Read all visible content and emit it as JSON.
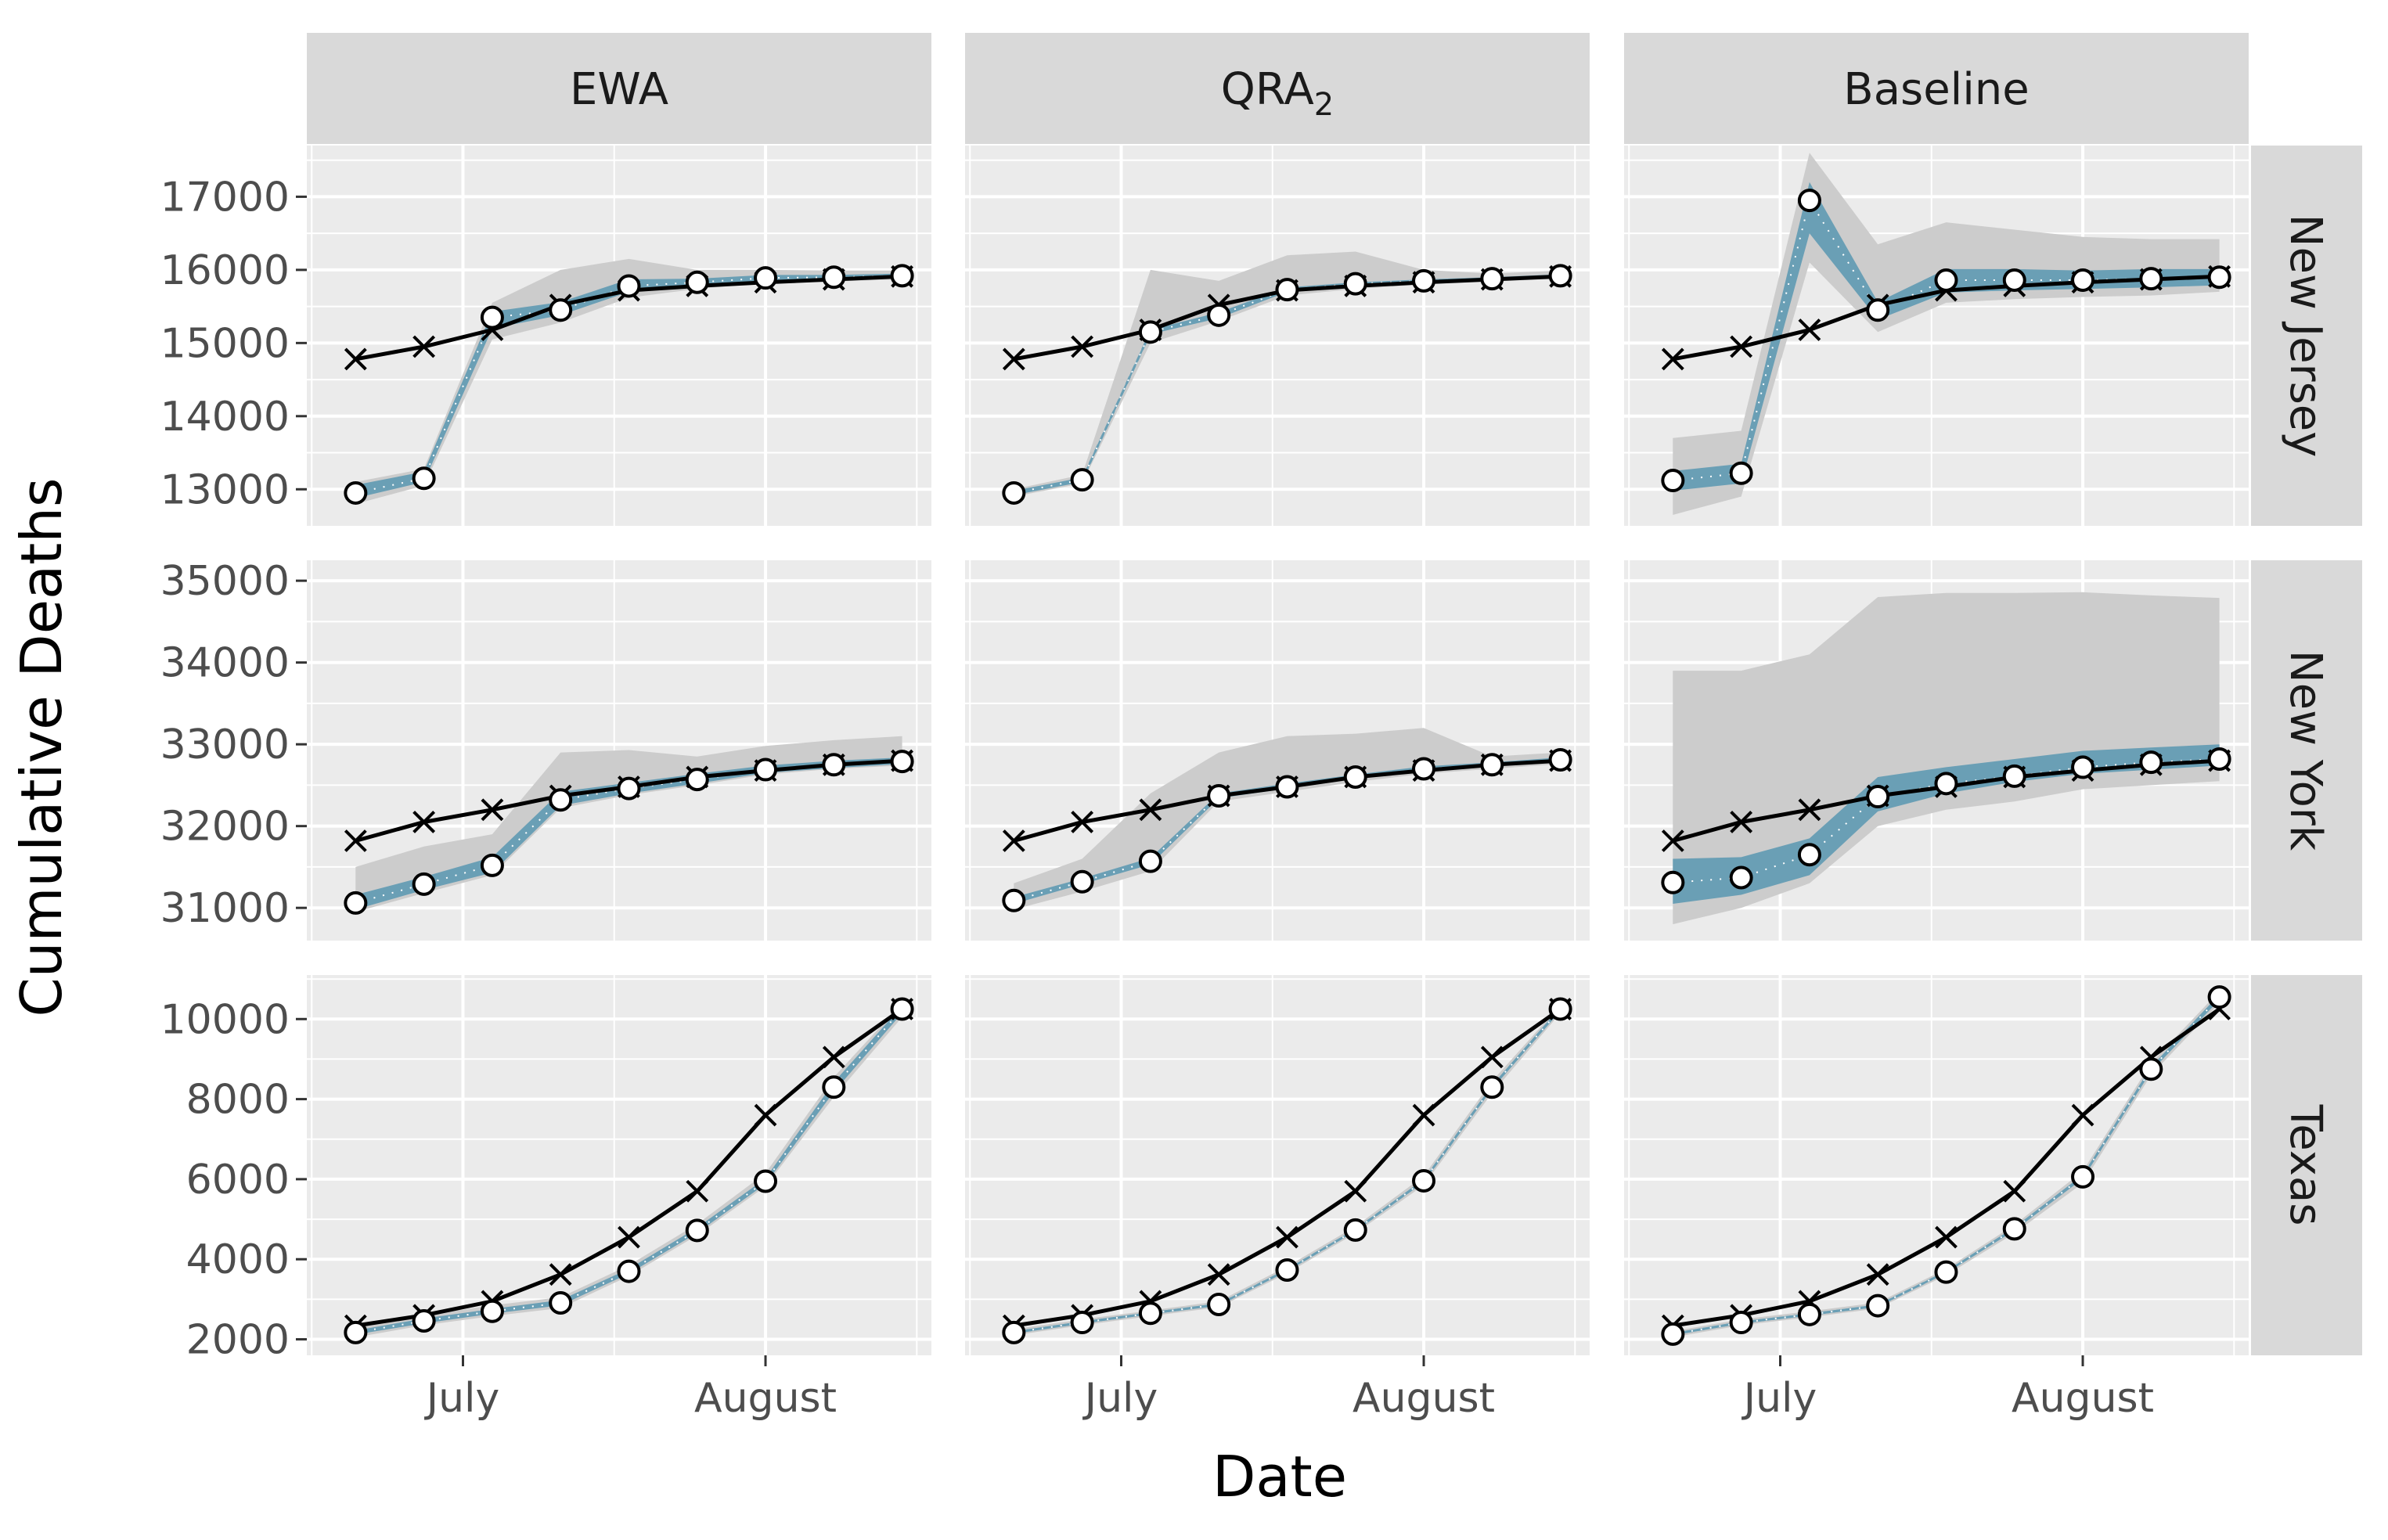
{
  "chart_data": {
    "type": "line",
    "xlabel": "Date",
    "ylabel": "Cumulative Deaths",
    "x_tick_labels": [
      "July",
      "August"
    ],
    "x_tick_dates": [
      "2020-07-01",
      "2020-08-01"
    ],
    "xlim": [
      "2020-06-15",
      "2020-08-18"
    ],
    "x": [
      "2020-06-20",
      "2020-06-27",
      "2020-07-04",
      "2020-07-11",
      "2020-07-18",
      "2020-07-25",
      "2020-08-01",
      "2020-08-08",
      "2020-08-15"
    ],
    "facet_columns": [
      "EWA",
      "QRA",
      "Baseline"
    ],
    "facet_column_subscripts": [
      "",
      "2",
      ""
    ],
    "facet_rows": [
      "New Jersey",
      "New York",
      "Texas"
    ],
    "grid": true,
    "colors": {
      "panel_bg": "#ebebeb",
      "grid": "#ffffff",
      "strip_bg": "#d9d9d9",
      "band_outer": "#cccccc",
      "band_inner": "#6a9fb5",
      "observed": "#000000",
      "forecast_line": "#6a9fb5",
      "point_fill": "#ffffff"
    },
    "rows": [
      {
        "state": "New Jersey",
        "ylim": [
          12500,
          17700
        ],
        "yticks": [
          13000,
          14000,
          15000,
          16000,
          17000
        ],
        "tick_labels": [
          "13000",
          "14000",
          "15000",
          "16000",
          "17000"
        ],
        "observed": [
          14780,
          14950,
          15180,
          15520,
          15720,
          15780,
          15830,
          15870,
          15910
        ],
        "panels": [
          {
            "method": "EWA",
            "forecast": [
              12950,
              13150,
              15350,
              15450,
              15780,
              15830,
              15890,
              15900,
              15920
            ],
            "inner_lo": [
              12880,
              13100,
              15200,
              15380,
              15700,
              15790,
              15860,
              15880,
              15900
            ],
            "inner_hi": [
              13060,
              13240,
              15430,
              15560,
              15870,
              15880,
              15930,
              15930,
              15950
            ],
            "outer_lo": [
              12800,
              13050,
              15050,
              15280,
              15620,
              15740,
              15820,
              15840,
              15870
            ],
            "outer_hi": [
              13100,
              13280,
              15550,
              16000,
              16150,
              16000,
              16000,
              15990,
              15990
            ]
          },
          {
            "method": "QRA",
            "forecast": [
              12950,
              13130,
              15150,
              15380,
              15730,
              15810,
              15850,
              15880,
              15920
            ],
            "inner_lo": [
              12920,
              13100,
              15120,
              15340,
              15700,
              15790,
              15830,
              15860,
              15900
            ],
            "inner_hi": [
              12980,
              13160,
              15180,
              15420,
              15760,
              15830,
              15870,
              15900,
              15940
            ],
            "outer_lo": [
              12900,
              13080,
              15000,
              15300,
              15650,
              15740,
              15800,
              15840,
              15880
            ],
            "outer_hi": [
              13000,
              13200,
              16000,
              15850,
              16200,
              16250,
              16000,
              15950,
              15990
            ]
          },
          {
            "method": "Baseline",
            "forecast": [
              13120,
              13220,
              16950,
              15450,
              15860,
              15860,
              15860,
              15880,
              15900
            ],
            "inner_lo": [
              12980,
              13080,
              16500,
              15320,
              15690,
              15720,
              15740,
              15760,
              15790
            ],
            "inner_hi": [
              13250,
              13350,
              17200,
              15560,
              16010,
              16010,
              15990,
              16010,
              16010
            ],
            "outer_lo": [
              12650,
              12900,
              16100,
              15150,
              15550,
              15600,
              15630,
              15650,
              15700
            ],
            "outer_hi": [
              13700,
              13800,
              17600,
              16350,
              16650,
              16550,
              16450,
              16420,
              16420
            ]
          }
        ]
      },
      {
        "state": "New York",
        "ylim": [
          30600,
          35250
        ],
        "yticks": [
          31000,
          32000,
          33000,
          34000,
          35000
        ],
        "tick_labels": [
          "31000",
          "32000",
          "33000",
          "34000",
          "35000"
        ],
        "observed": [
          31820,
          32050,
          32200,
          32370,
          32480,
          32600,
          32680,
          32750,
          32800
        ],
        "panels": [
          {
            "method": "EWA",
            "forecast": [
              31060,
              31290,
              31520,
              32320,
              32460,
              32570,
              32690,
              32750,
              32790
            ],
            "inner_lo": [
              30980,
              31220,
              31430,
              32250,
              32400,
              32520,
              32650,
              32710,
              32760
            ],
            "inner_hi": [
              31160,
              31380,
              31620,
              32420,
              32530,
              32640,
              32740,
              32800,
              32840
            ],
            "outer_lo": [
              30950,
              31180,
              31400,
              32220,
              32380,
              32500,
              32630,
              32700,
              32740
            ],
            "outer_hi": [
              31500,
              31750,
              31900,
              32900,
              32930,
              32850,
              32980,
              33050,
              33100
            ]
          },
          {
            "method": "QRA",
            "forecast": [
              31090,
              31320,
              31570,
              32370,
              32480,
              32600,
              32700,
              32750,
              32810
            ],
            "inner_lo": [
              31050,
              31290,
              31530,
              32340,
              32460,
              32580,
              32680,
              32730,
              32790
            ],
            "inner_hi": [
              31130,
              31360,
              31610,
              32400,
              32520,
              32630,
              32730,
              32780,
              32840
            ],
            "outer_lo": [
              30980,
              31200,
              31450,
              32300,
              32420,
              32540,
              32640,
              32700,
              32760
            ],
            "outer_hi": [
              31300,
              31600,
              32400,
              32900,
              33100,
              33130,
              33200,
              32850,
              32900
            ]
          },
          {
            "method": "Baseline",
            "forecast": [
              31310,
              31370,
              31650,
              32360,
              32520,
              32610,
              32720,
              32780,
              32820
            ],
            "inner_lo": [
              31050,
              31160,
              31400,
              32180,
              32400,
              32540,
              32640,
              32690,
              32740
            ],
            "inner_hi": [
              31600,
              31620,
              31850,
              32600,
              32720,
              32820,
              32920,
              32960,
              33000
            ],
            "outer_lo": [
              30800,
              31000,
              31300,
              32000,
              32200,
              32300,
              32450,
              32500,
              32550
            ],
            "outer_hi": [
              33900,
              33900,
              34100,
              34800,
              34850,
              34850,
              34860,
              34820,
              34790
            ]
          }
        ]
      },
      {
        "state": "Texas",
        "ylim": [
          1600,
          11100
        ],
        "yticks": [
          2000,
          4000,
          6000,
          8000,
          10000
        ],
        "tick_labels": [
          "2000",
          "4000",
          "6000",
          "8000",
          "10000"
        ],
        "observed": [
          2340,
          2600,
          2950,
          3620,
          4550,
          5700,
          7600,
          9050,
          10250
        ],
        "panels": [
          {
            "method": "EWA",
            "forecast": [
              2170,
              2460,
              2700,
              2910,
              3700,
              4720,
              5950,
              8300,
              10250
            ],
            "inner_lo": [
              2120,
              2400,
              2640,
              2850,
              3640,
              4660,
              5880,
              8180,
              10150
            ],
            "inner_hi": [
              2220,
              2520,
              2760,
              2980,
              3760,
              4790,
              6020,
              8420,
              10330
            ],
            "outer_lo": [
              2050,
              2350,
              2580,
              2780,
              3580,
              4600,
              5820,
              8050,
              10050
            ],
            "outer_hi": [
              2300,
              2600,
              2850,
              3050,
              3850,
              4880,
              6150,
              8550,
              10400
            ]
          },
          {
            "method": "QRA",
            "forecast": [
              2170,
              2420,
              2650,
              2870,
              3730,
              4730,
              5960,
              8300,
              10250
            ],
            "inner_lo": [
              2140,
              2390,
              2620,
              2840,
              3700,
              4700,
              5920,
              8250,
              10200
            ],
            "inner_hi": [
              2200,
              2450,
              2680,
              2900,
              3760,
              4760,
              6000,
              8350,
              10300
            ],
            "outer_lo": [
              2100,
              2350,
              2580,
              2800,
              3650,
              4650,
              5850,
              8150,
              10150
            ],
            "outer_hi": [
              2250,
              2500,
              2720,
              2950,
              3820,
              4820,
              6080,
              8450,
              10350
            ]
          },
          {
            "method": "Baseline",
            "forecast": [
              2130,
              2420,
              2620,
              2840,
              3680,
              4760,
              6060,
              8750,
              10550
            ],
            "inner_lo": [
              2100,
              2390,
              2590,
              2810,
              3650,
              4720,
              6010,
              8690,
              10480
            ],
            "inner_hi": [
              2160,
              2450,
              2650,
              2870,
              3710,
              4800,
              6110,
              8810,
              10620
            ],
            "outer_lo": [
              2050,
              2350,
              2550,
              2770,
              3600,
              4650,
              5900,
              8600,
              10400
            ],
            "outer_hi": [
              2200,
              2500,
              2700,
              2920,
              3760,
              4860,
              6200,
              8900,
              10700
            ]
          }
        ]
      }
    ]
  }
}
